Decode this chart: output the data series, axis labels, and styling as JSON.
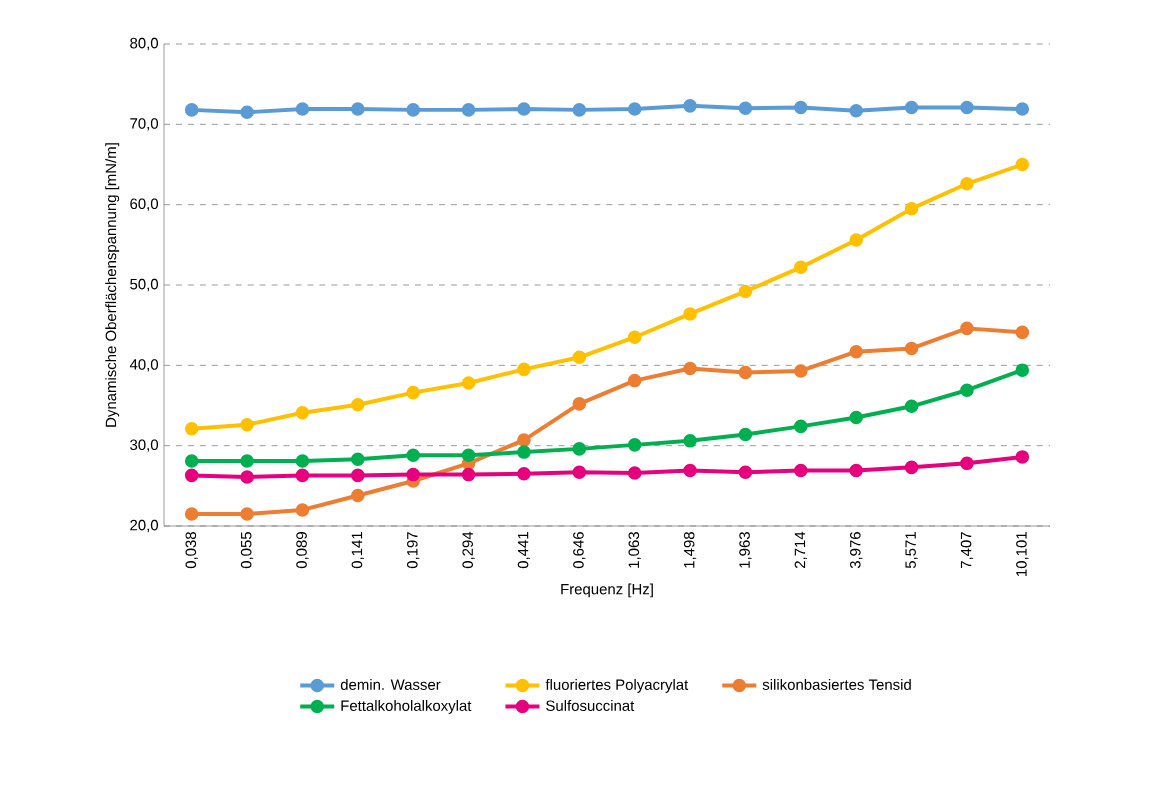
{
  "chart_data": {
    "type": "line",
    "xlabel": "Frequenz [Hz]",
    "ylabel": "Dynamische Oberflächenspannung [mN/m]",
    "categories": [
      "0,038",
      "0,055",
      "0,089",
      "0,141",
      "0,197",
      "0,294",
      "0,441",
      "0,646",
      "1,063",
      "1,498",
      "1,963",
      "2,714",
      "3,976",
      "5,571",
      "7,407",
      "10,101"
    ],
    "ylim": [
      20,
      80
    ],
    "yticks": [
      {
        "value": 20,
        "label": "20,0"
      },
      {
        "value": 30,
        "label": "30,0"
      },
      {
        "value": 40,
        "label": "40,0"
      },
      {
        "value": 50,
        "label": "50,0"
      },
      {
        "value": 60,
        "label": "60,0"
      },
      {
        "value": 70,
        "label": "70,0"
      },
      {
        "value": 80,
        "label": "80,0"
      }
    ],
    "grid": "y",
    "legend": "bottom",
    "marker": "circle",
    "line_style": "solid",
    "series": [
      {
        "name": "demin. Wasser",
        "color": "#5b9bd5",
        "values": [
          71.8,
          71.5,
          71.9,
          71.9,
          71.8,
          71.8,
          71.9,
          71.8,
          71.9,
          72.3,
          72.0,
          72.1,
          71.7,
          72.1,
          72.1,
          71.9
        ]
      },
      {
        "name": "fluoriertes Polyacrylat",
        "color": "#ffc000",
        "values": [
          32.1,
          32.6,
          34.1,
          35.1,
          36.6,
          37.8,
          39.5,
          41.0,
          43.5,
          46.4,
          49.2,
          52.2,
          55.6,
          59.5,
          62.6,
          65.0
        ]
      },
      {
        "name": "silikonbasiertes Tensid",
        "color": "#ed7d31",
        "values": [
          21.5,
          21.5,
          22.0,
          23.8,
          25.6,
          27.8,
          30.7,
          35.2,
          38.1,
          39.6,
          39.1,
          39.3,
          41.7,
          42.1,
          44.6,
          44.1
        ]
      },
      {
        "name": "Fettalkoholalkoxylat",
        "color": "#00b050",
        "values": [
          28.1,
          28.1,
          28.1,
          28.3,
          28.8,
          28.8,
          29.2,
          29.6,
          30.1,
          30.6,
          31.4,
          32.4,
          33.5,
          34.9,
          36.9,
          39.4
        ]
      },
      {
        "name": "Sulfosuccinat",
        "color": "#e6007e",
        "values": [
          26.3,
          26.1,
          26.3,
          26.3,
          26.4,
          26.4,
          26.5,
          26.7,
          26.6,
          26.9,
          26.7,
          26.9,
          26.9,
          27.3,
          27.8,
          28.6
        ]
      }
    ]
  }
}
